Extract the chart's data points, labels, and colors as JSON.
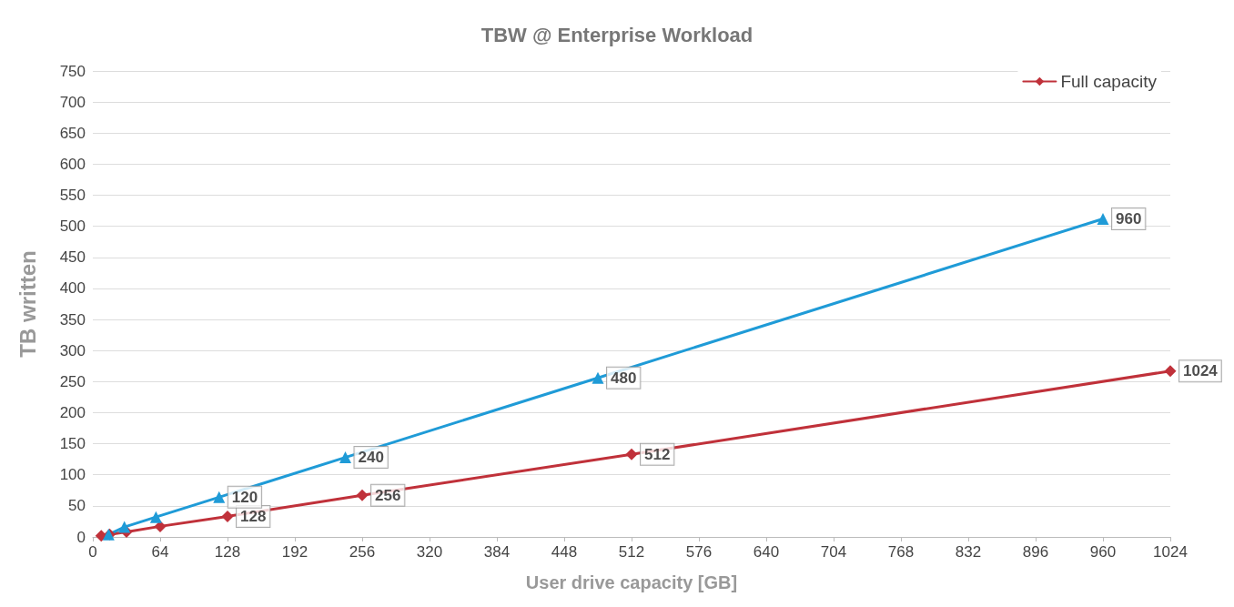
{
  "chart_data": {
    "type": "line",
    "title": "TBW @ Enterprise Workload",
    "xlabel": "User drive capacity [GB]",
    "ylabel": "TB written",
    "xlim": [
      0,
      1024
    ],
    "xticks": [
      0,
      64,
      128,
      192,
      256,
      320,
      384,
      448,
      512,
      576,
      640,
      704,
      768,
      832,
      896,
      960,
      1024
    ],
    "ylim": [
      0,
      750
    ],
    "yticks": [
      0,
      50,
      100,
      150,
      200,
      250,
      300,
      350,
      400,
      450,
      500,
      550,
      600,
      650,
      700,
      750
    ],
    "grid": "y",
    "legend": "top right",
    "line_style": "solid",
    "series": [
      {
        "name": "Full capacity",
        "color": "#c0313a",
        "marker": "diamond",
        "x": [
          8,
          16,
          32,
          64,
          128,
          256,
          512,
          1024
        ],
        "values": [
          2,
          4,
          8,
          17,
          33,
          67,
          133,
          267
        ]
      },
      {
        "color": "#1f9bd7",
        "marker": "triangle",
        "x": [
          15,
          30,
          60,
          120,
          240,
          480,
          960
        ],
        "values": [
          4,
          16,
          32,
          64,
          128,
          256,
          512
        ]
      }
    ],
    "annotations": [
      {
        "text": "128",
        "x": 128,
        "y": 33
      },
      {
        "text": "256",
        "x": 256,
        "y": 67
      },
      {
        "text": "512",
        "x": 512,
        "y": 133
      },
      {
        "text": "1024",
        "x": 1024,
        "y": 267
      },
      {
        "text": "120",
        "x": 120,
        "y": 64
      },
      {
        "text": "240",
        "x": 240,
        "y": 128
      },
      {
        "text": "480",
        "x": 480,
        "y": 256
      },
      {
        "text": "960",
        "x": 960,
        "y": 512
      }
    ]
  }
}
